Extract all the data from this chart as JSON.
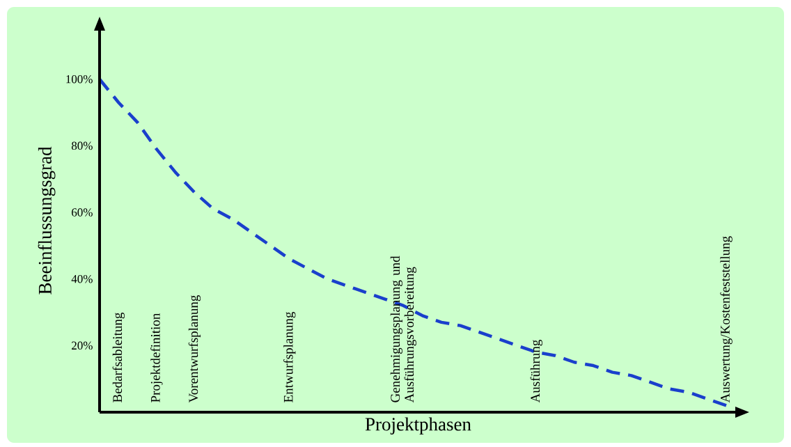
{
  "chart_data": {
    "type": "line",
    "xlabel": "Projektphasen",
    "ylabel": "Beeinflussungsgrad",
    "categories": [
      null,
      "Bedarfsableitung",
      null,
      "Projektdefinition",
      null,
      "Vorentwurfsplanung",
      null,
      null,
      null,
      null,
      "Entwurfsplanung",
      null,
      null,
      null,
      null,
      null,
      "Genehmigungsplanung und Ausführungsvorbereitung",
      null,
      null,
      null,
      null,
      null,
      null,
      "Ausführung",
      null,
      null,
      null,
      null,
      null,
      null,
      null,
      null,
      null,
      "Auswertung/Kostenfeststellung"
    ],
    "series": [
      {
        "color": "#1a3fcc",
        "line_style": "dashed",
        "marker": "none",
        "values": [
          100,
          93,
          87,
          79,
          72,
          66,
          61,
          58,
          54,
          50,
          46,
          43,
          40,
          38,
          36,
          34,
          32,
          29,
          27,
          26,
          24,
          22,
          20,
          18,
          17,
          15,
          14,
          12,
          11,
          9,
          7,
          6,
          4,
          2
        ]
      }
    ],
    "ylim": [
      0,
      115
    ],
    "yticks": [
      {
        "value": 20,
        "label": "20%"
      },
      {
        "value": 40,
        "label": "40%"
      },
      {
        "value": 60,
        "label": "60%"
      },
      {
        "value": 80,
        "label": "80%"
      },
      {
        "value": 100,
        "label": "100%"
      }
    ]
  }
}
